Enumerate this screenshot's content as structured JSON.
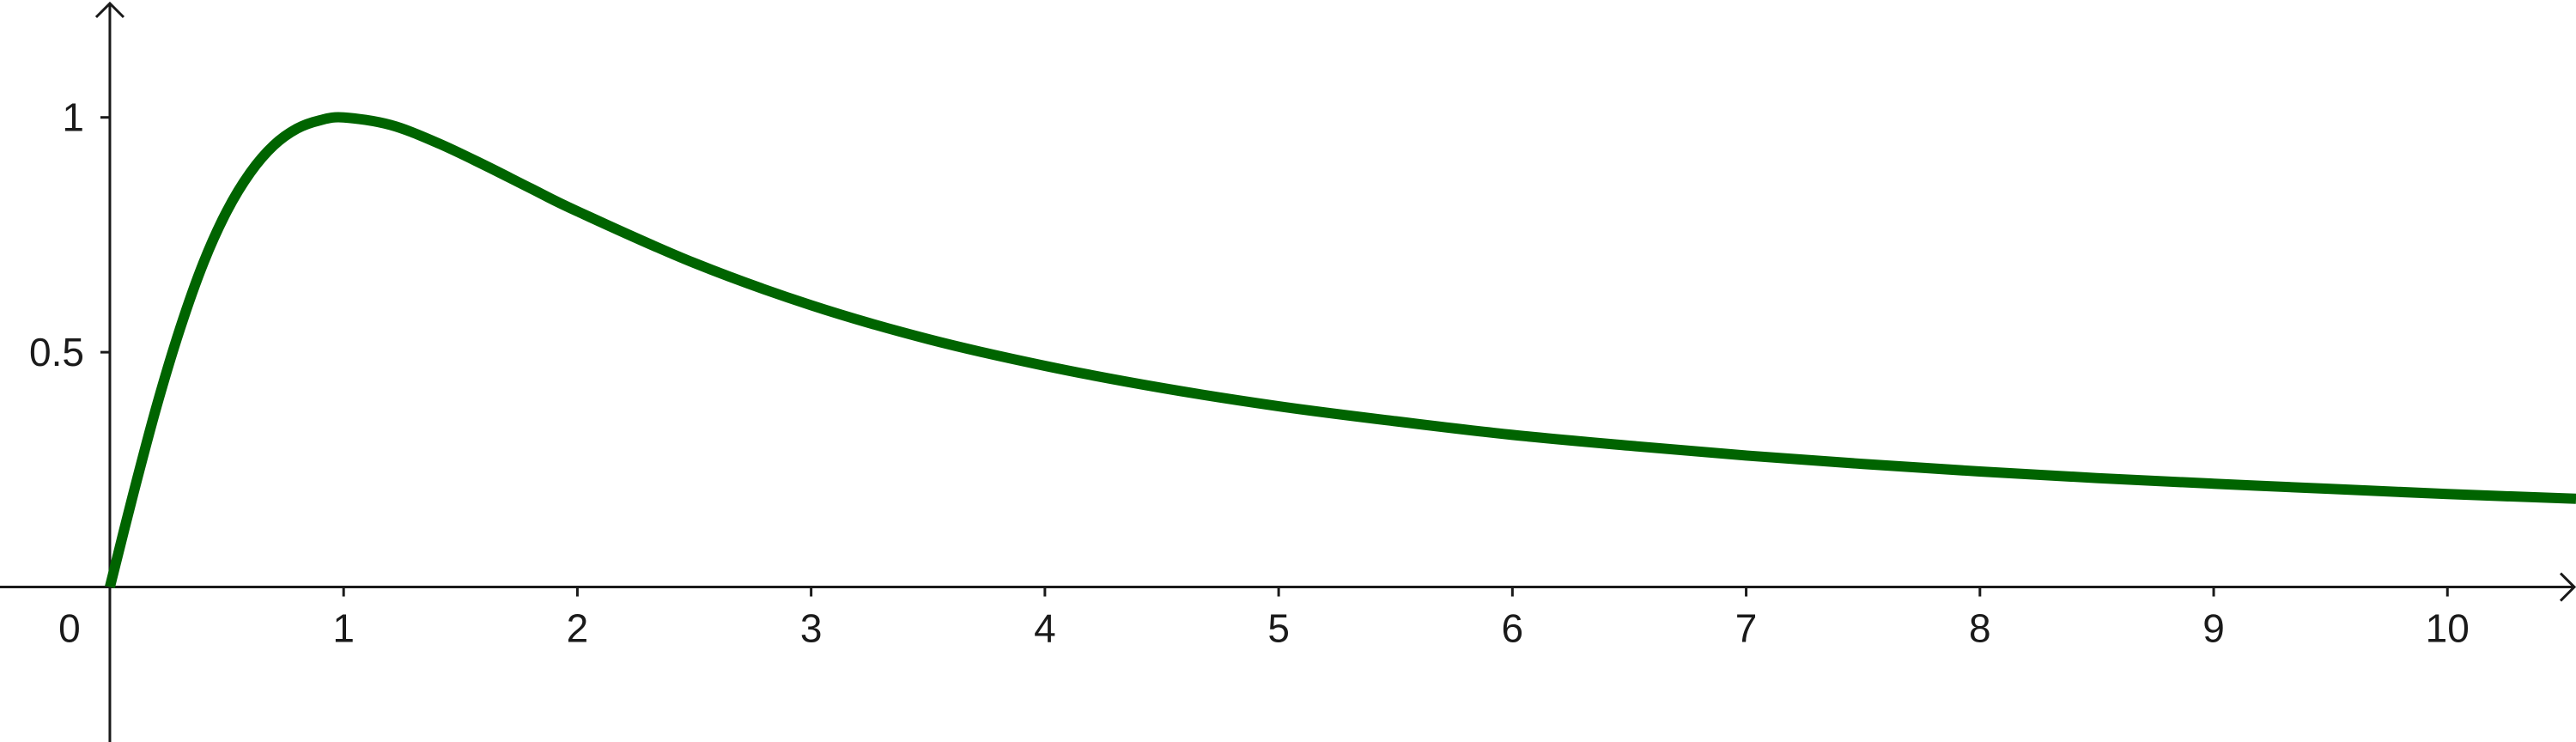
{
  "chart_data": {
    "type": "line",
    "title": "",
    "xlabel": "",
    "ylabel": "",
    "xlim": [
      -0.47,
      10.55
    ],
    "ylim": [
      -0.33,
      1.25
    ],
    "grid": false,
    "origin_label": "0",
    "x_ticks": [
      {
        "value": 1,
        "label": "1"
      },
      {
        "value": 2,
        "label": "2"
      },
      {
        "value": 3,
        "label": "3"
      },
      {
        "value": 4,
        "label": "4"
      },
      {
        "value": 5,
        "label": "5"
      },
      {
        "value": 6,
        "label": "6"
      },
      {
        "value": 7,
        "label": "7"
      },
      {
        "value": 8,
        "label": "8"
      },
      {
        "value": 9,
        "label": "9"
      },
      {
        "value": 10,
        "label": "10"
      }
    ],
    "y_ticks": [
      {
        "value": 0.5,
        "label": "0.5"
      },
      {
        "value": 1,
        "label": "1"
      }
    ],
    "series": [
      {
        "color": "#006400",
        "x": [
          0,
          0.1,
          0.2,
          0.3,
          0.4,
          0.5,
          0.6,
          0.7,
          0.8,
          0.9,
          1,
          1.2,
          1.4,
          1.6,
          1.8,
          2,
          2.5,
          3,
          3.5,
          4,
          4.5,
          5,
          5.5,
          6,
          6.5,
          7,
          7.5,
          8,
          8.5,
          9,
          9.5,
          10,
          10.55
        ],
        "y": [
          0,
          0.198,
          0.385,
          0.55,
          0.69,
          0.8,
          0.882,
          0.94,
          0.976,
          0.994,
          1.0,
          0.984,
          0.946,
          0.899,
          0.849,
          0.8,
          0.69,
          0.6,
          0.528,
          0.471,
          0.424,
          0.385,
          0.353,
          0.324,
          0.301,
          0.28,
          0.262,
          0.246,
          0.232,
          0.22,
          0.209,
          0.198,
          0.188
        ]
      }
    ]
  }
}
